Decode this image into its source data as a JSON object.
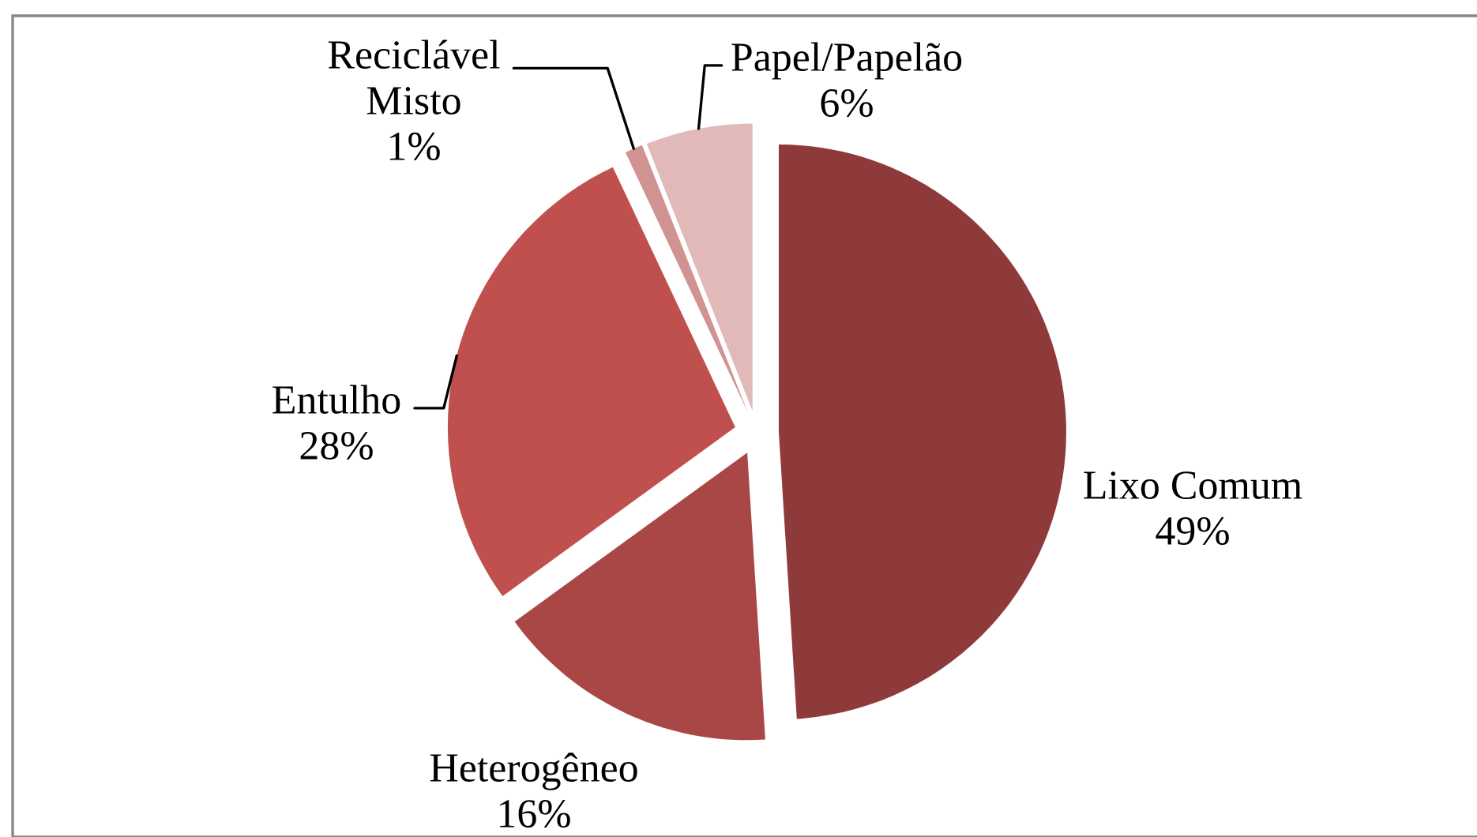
{
  "chart_data": {
    "type": "pie",
    "categories": [
      "Lixo Comum",
      "Heterogêneo",
      "Entulho",
      "Reciclável Misto",
      "Papel/Papelão"
    ],
    "values": [
      49,
      16,
      28,
      1,
      6
    ],
    "value_labels": [
      "49%",
      "16%",
      "28%",
      "1%",
      "6%"
    ],
    "colors": [
      "#8f3a3a",
      "#a94746",
      "#c0504d",
      "#d19391",
      "#e1b9b9"
    ]
  }
}
